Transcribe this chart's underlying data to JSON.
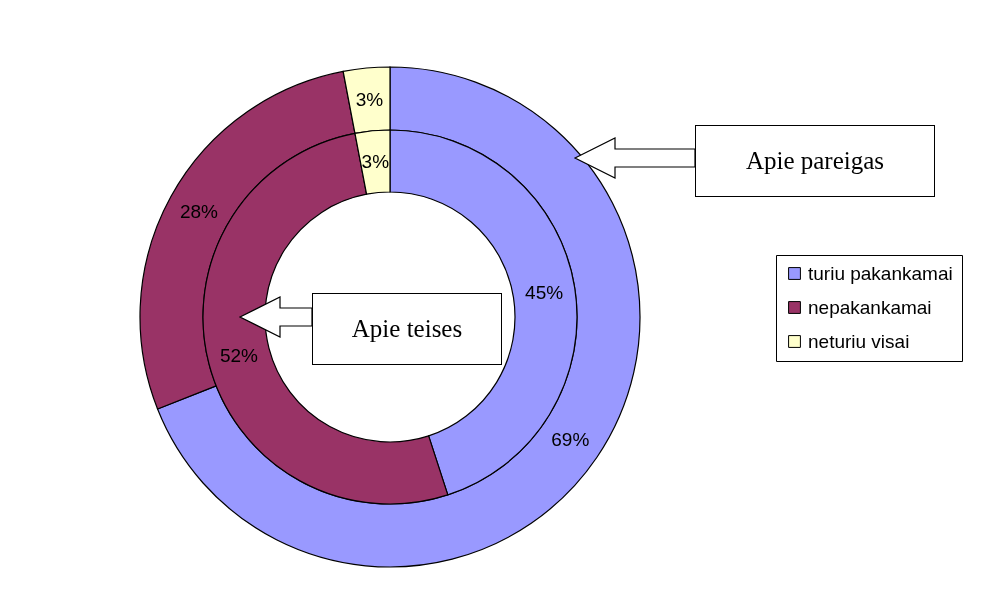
{
  "chart_data": {
    "type": "donut",
    "categories": [
      "turiu pakankamai",
      "nepakankamai",
      "neturiu visai"
    ],
    "colors": [
      "#9999ff",
      "#993366",
      "#ffffcc"
    ],
    "legend": "right",
    "series": [
      {
        "name": "Apie pareigas",
        "values": [
          69,
          28,
          3
        ],
        "value_labels": [
          "69%",
          "28%",
          "3%"
        ]
      },
      {
        "name": "Apie teises",
        "values": [
          45,
          52,
          3
        ],
        "value_labels": [
          "45%",
          "52%",
          "3%"
        ]
      }
    ]
  }
}
